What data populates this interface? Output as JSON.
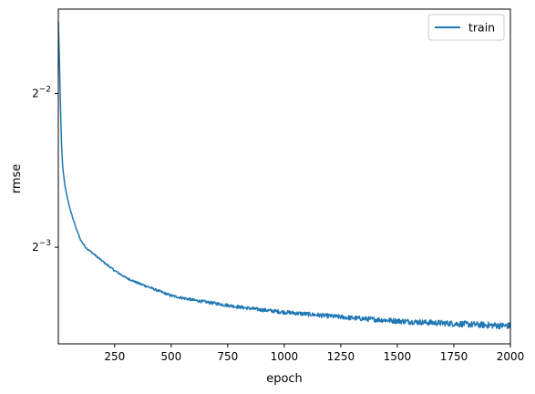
{
  "chart_data": {
    "type": "line",
    "xlabel": "epoch",
    "ylabel": "rmse",
    "x_ticks": [
      250,
      500,
      750,
      1000,
      1250,
      1500,
      1750,
      2000
    ],
    "x_tick_labels": [
      "250",
      "500",
      "750",
      "1000",
      "1250",
      "1500",
      "1750",
      "2000"
    ],
    "xlim": [
      1,
      2000
    ],
    "y_scale": "log2",
    "y_ticks": [
      0.25,
      0.125
    ],
    "y_tick_labels": [
      {
        "base": "2",
        "exp": "−2"
      },
      {
        "base": "2",
        "exp": "−3"
      }
    ],
    "ylim": [
      0.0809,
      0.3655
    ],
    "legend": {
      "position": "top-right",
      "entries": [
        "train"
      ]
    },
    "colors": {
      "train": "#1f77b4"
    },
    "series": [
      {
        "name": "train",
        "x": [
          1,
          5,
          10,
          15,
          20,
          30,
          40,
          50,
          60,
          80,
          100,
          125,
          150,
          175,
          200,
          250,
          300,
          350,
          400,
          450,
          500,
          600,
          700,
          800,
          900,
          1000,
          1100,
          1200,
          1300,
          1400,
          1500,
          1600,
          1700,
          1800,
          1900,
          2000
        ],
        "y": [
          0.345,
          0.3,
          0.24,
          0.2,
          0.18,
          0.165,
          0.157,
          0.15,
          0.145,
          0.136,
          0.129,
          0.1245,
          0.122,
          0.1195,
          0.117,
          0.1125,
          0.109,
          0.1065,
          0.1045,
          0.1025,
          0.1005,
          0.0985,
          0.097,
          0.0955,
          0.0943,
          0.0933,
          0.0925,
          0.0917,
          0.0909,
          0.0903,
          0.0897,
          0.0892,
          0.0888,
          0.0884,
          0.088,
          0.0877
        ]
      }
    ]
  }
}
